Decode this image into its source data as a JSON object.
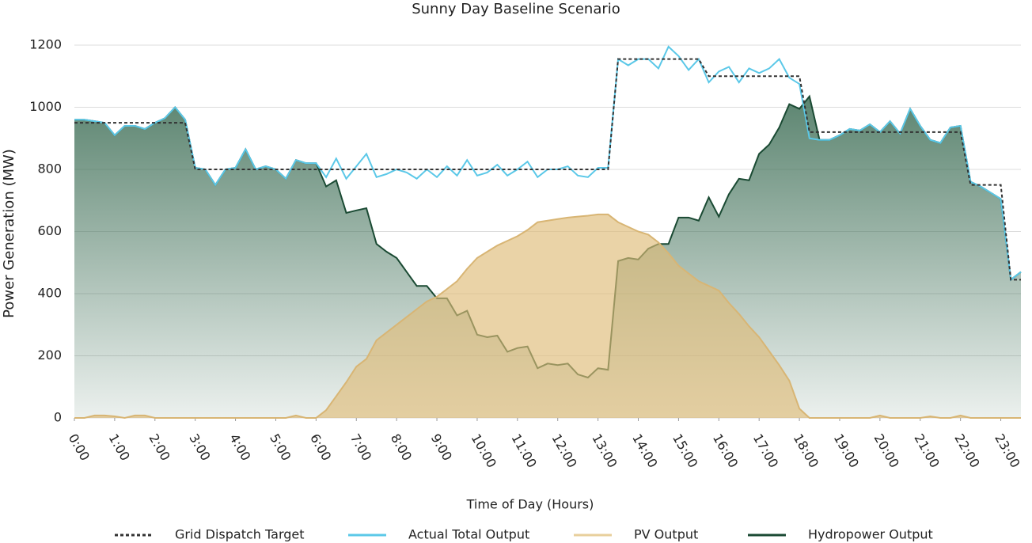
{
  "chart_data": {
    "type": "line",
    "title": "Sunny Day Baseline Scenario",
    "xlabel": "Time of Day (Hours)",
    "ylabel": "Power Generation (MW)",
    "x": [
      0,
      0.25,
      0.5,
      0.75,
      1,
      1.25,
      1.5,
      1.75,
      2,
      2.25,
      2.5,
      2.75,
      3,
      3.25,
      3.5,
      3.75,
      4,
      4.25,
      4.5,
      4.75,
      5,
      5.25,
      5.5,
      5.75,
      6,
      6.25,
      6.5,
      6.75,
      7,
      7.25,
      7.5,
      7.75,
      8,
      8.25,
      8.5,
      8.75,
      9,
      9.25,
      9.5,
      9.75,
      10,
      10.25,
      10.5,
      10.75,
      11,
      11.25,
      11.5,
      11.75,
      12,
      12.25,
      12.5,
      12.75,
      13,
      13.25,
      13.5,
      13.75,
      14,
      14.25,
      14.5,
      14.75,
      15,
      15.25,
      15.5,
      15.75,
      16,
      16.25,
      16.5,
      16.75,
      17,
      17.25,
      17.5,
      17.75,
      18,
      18.25,
      18.5,
      18.75,
      19,
      19.25,
      19.5,
      19.75,
      20,
      20.25,
      20.5,
      20.75,
      21,
      21.25,
      21.5,
      21.75,
      22,
      22.25,
      22.5,
      22.75,
      23,
      23.25,
      23.5
    ],
    "xlim": [
      0,
      23.5
    ],
    "xticks": [
      {
        "value": 0,
        "label": "0:00"
      },
      {
        "value": 1,
        "label": "1:00"
      },
      {
        "value": 2,
        "label": "2:00"
      },
      {
        "value": 3,
        "label": "3:00"
      },
      {
        "value": 4,
        "label": "4:00"
      },
      {
        "value": 5,
        "label": "5:00"
      },
      {
        "value": 6,
        "label": "6:00"
      },
      {
        "value": 7,
        "label": "7:00"
      },
      {
        "value": 8,
        "label": "8:00"
      },
      {
        "value": 9,
        "label": "9:00"
      },
      {
        "value": 10,
        "label": "10:00"
      },
      {
        "value": 11,
        "label": "11:00"
      },
      {
        "value": 12,
        "label": "12:00"
      },
      {
        "value": 13,
        "label": "13:00"
      },
      {
        "value": 14,
        "label": "14:00"
      },
      {
        "value": 15,
        "label": "15:00"
      },
      {
        "value": 16,
        "label": "16:00"
      },
      {
        "value": 17,
        "label": "17:00"
      },
      {
        "value": 18,
        "label": "18:00"
      },
      {
        "value": 19,
        "label": "19:00"
      },
      {
        "value": 20,
        "label": "20:00"
      },
      {
        "value": 21,
        "label": "21:00"
      },
      {
        "value": 22,
        "label": "22:00"
      },
      {
        "value": 23,
        "label": "23:00"
      }
    ],
    "ylim": [
      0,
      1200
    ],
    "yticks": [
      0,
      200,
      400,
      600,
      800,
      1000,
      1200
    ],
    "grid": true,
    "legend": "bottom",
    "series": [
      {
        "name": "Grid Dispatch Target",
        "color": "#333333",
        "style": "dashed",
        "values": [
          950,
          950,
          950,
          950,
          950,
          950,
          950,
          950,
          950,
          950,
          950,
          950,
          800,
          800,
          800,
          800,
          800,
          800,
          800,
          800,
          800,
          800,
          800,
          800,
          800,
          800,
          800,
          800,
          800,
          800,
          800,
          800,
          800,
          800,
          800,
          800,
          800,
          800,
          800,
          800,
          800,
          800,
          800,
          800,
          800,
          800,
          800,
          800,
          800,
          800,
          800,
          800,
          800,
          800,
          1155,
          1155,
          1155,
          1155,
          1155,
          1155,
          1155,
          1155,
          1155,
          1100,
          1100,
          1100,
          1100,
          1100,
          1100,
          1100,
          1100,
          1100,
          1100,
          920,
          920,
          920,
          920,
          920,
          920,
          920,
          920,
          920,
          920,
          920,
          920,
          920,
          920,
          920,
          920,
          750,
          750,
          750,
          750,
          445,
          445
        ]
      },
      {
        "name": "Actual Total Output",
        "color": "#5bc8e8",
        "style": "line",
        "values": [
          960,
          960,
          955,
          950,
          910,
          940,
          940,
          930,
          950,
          965,
          1000,
          960,
          805,
          800,
          750,
          800,
          805,
          865,
          800,
          810,
          800,
          770,
          830,
          820,
          820,
          775,
          835,
          770,
          810,
          850,
          775,
          785,
          800,
          790,
          770,
          800,
          775,
          810,
          780,
          830,
          780,
          790,
          815,
          780,
          800,
          825,
          775,
          800,
          800,
          810,
          780,
          775,
          805,
          805,
          1155,
          1135,
          1155,
          1155,
          1125,
          1195,
          1165,
          1120,
          1155,
          1080,
          1115,
          1130,
          1080,
          1125,
          1110,
          1125,
          1155,
          1095,
          1075,
          900,
          895,
          895,
          910,
          930,
          925,
          945,
          920,
          955,
          915,
          995,
          940,
          895,
          885,
          935,
          940,
          760,
          745,
          725,
          705,
          445,
          470
        ]
      },
      {
        "name": "PV Output",
        "color": "#e8cf9c",
        "style": "area",
        "values": [
          0,
          0,
          8,
          8,
          5,
          0,
          8,
          8,
          0,
          0,
          0,
          0,
          0,
          0,
          0,
          0,
          0,
          0,
          0,
          0,
          0,
          0,
          8,
          0,
          0,
          25,
          70,
          115,
          165,
          190,
          250,
          275,
          300,
          325,
          350,
          375,
          390,
          415,
          440,
          480,
          515,
          535,
          555,
          570,
          585,
          605,
          630,
          635,
          640,
          645,
          648,
          651,
          655,
          655,
          630,
          615,
          600,
          590,
          565,
          530,
          490,
          465,
          440,
          425,
          410,
          370,
          335,
          295,
          260,
          215,
          170,
          120,
          30,
          0,
          0,
          0,
          0,
          0,
          0,
          0,
          8,
          0,
          0,
          0,
          0,
          5,
          0,
          0,
          8,
          0,
          0,
          0,
          0,
          0,
          0
        ]
      },
      {
        "name": "Hydropower Output",
        "color": "#1a4a33",
        "style": "area",
        "values": [
          960,
          960,
          955,
          950,
          910,
          940,
          940,
          930,
          950,
          965,
          1000,
          960,
          805,
          800,
          750,
          800,
          805,
          865,
          800,
          810,
          800,
          770,
          830,
          820,
          820,
          745,
          765,
          660,
          668,
          675,
          560,
          535,
          515,
          470,
          425,
          425,
          385,
          385,
          330,
          345,
          268,
          260,
          265,
          213,
          225,
          230,
          160,
          175,
          170,
          175,
          140,
          130,
          160,
          155,
          505,
          515,
          510,
          545,
          560,
          560,
          645,
          645,
          635,
          710,
          648,
          720,
          770,
          765,
          850,
          880,
          935,
          1010,
          995,
          1035,
          895,
          895,
          910,
          930,
          925,
          945,
          920,
          955,
          915,
          995,
          940,
          895,
          885,
          935,
          940,
          760,
          745,
          725,
          705,
          445,
          470
        ]
      }
    ]
  }
}
